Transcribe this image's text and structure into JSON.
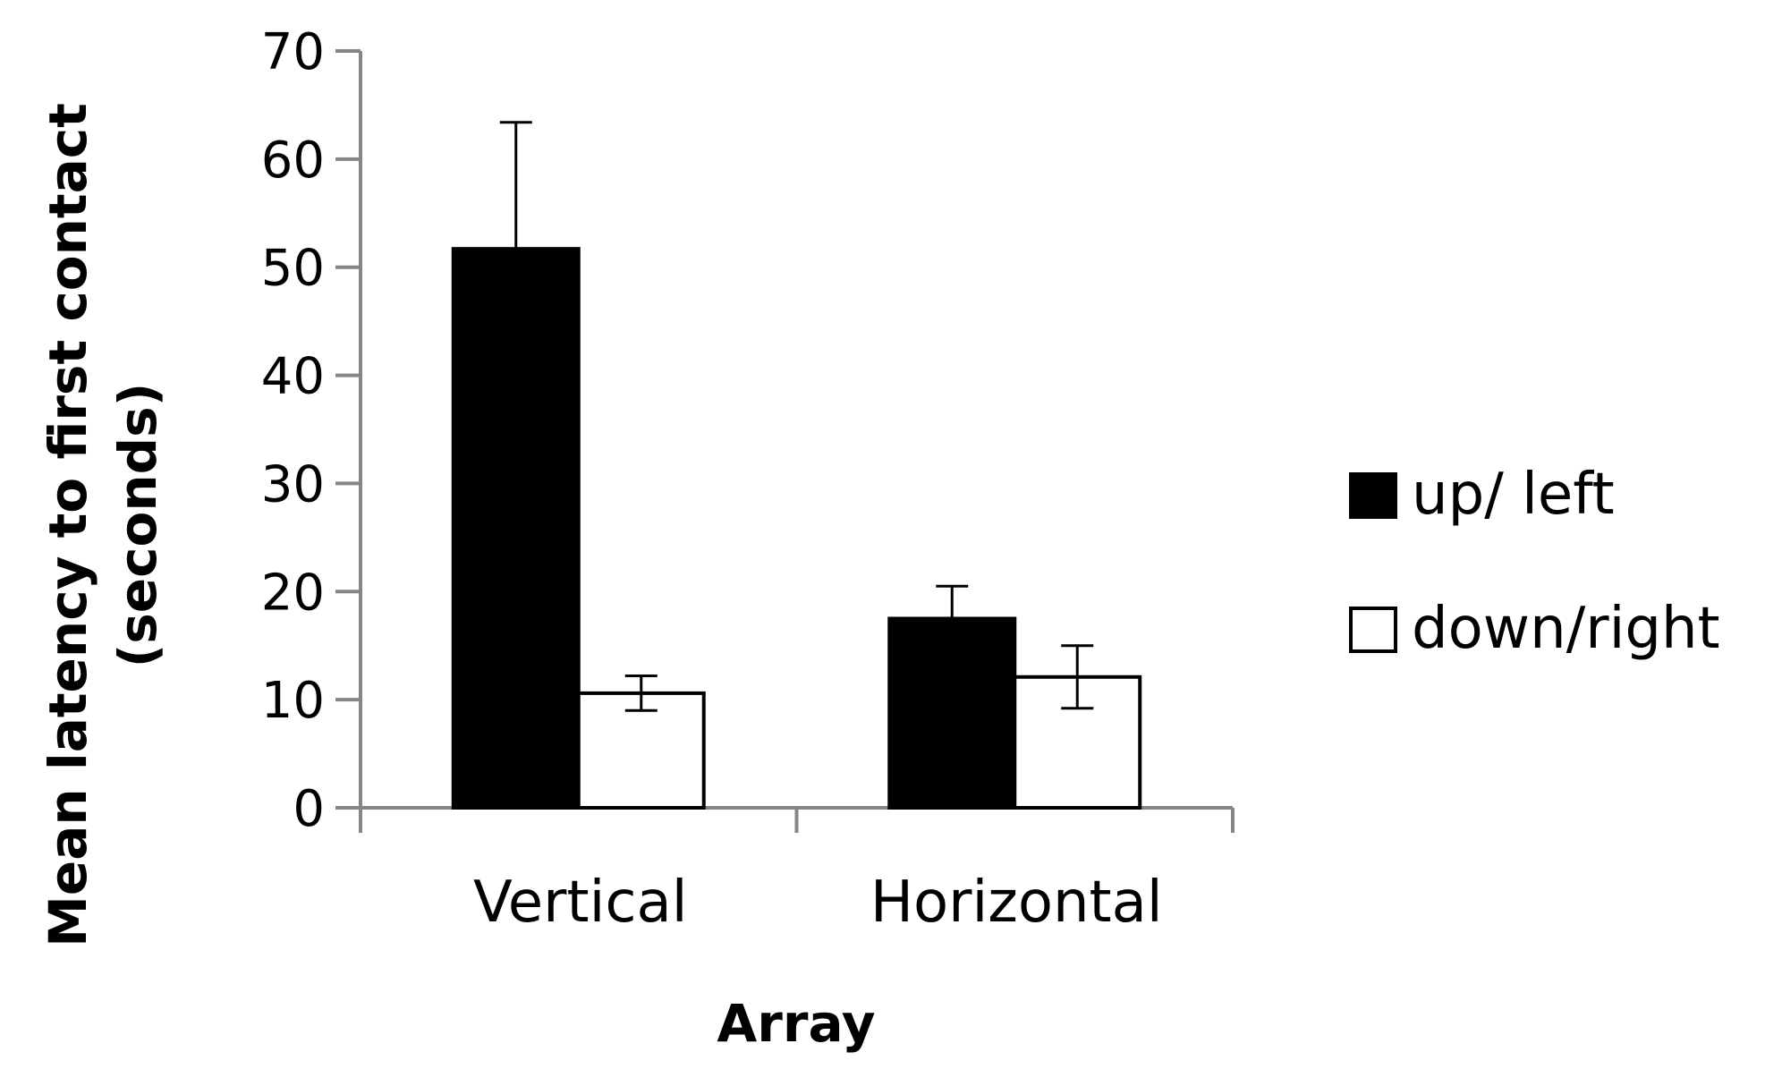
{
  "chart_data": {
    "type": "bar",
    "title": "",
    "xlabel": "Array",
    "ylabel_line1": "Mean latency to first contact",
    "ylabel_line2": "(seconds)",
    "ylim": [
      0,
      70
    ],
    "yticks": [
      0,
      10,
      20,
      30,
      40,
      50,
      60,
      70
    ],
    "categories": [
      "Vertical",
      "Horizontal"
    ],
    "series": [
      {
        "name": "up/ left",
        "values": [
          51.7,
          17.5
        ],
        "errors": [
          11.7,
          3.0
        ],
        "color": "#000000"
      },
      {
        "name": "down/right",
        "values": [
          10.6,
          12.1
        ],
        "errors": [
          1.6,
          2.9
        ],
        "color": "#ffffff"
      }
    ],
    "grid": false,
    "legend_position": "right"
  }
}
